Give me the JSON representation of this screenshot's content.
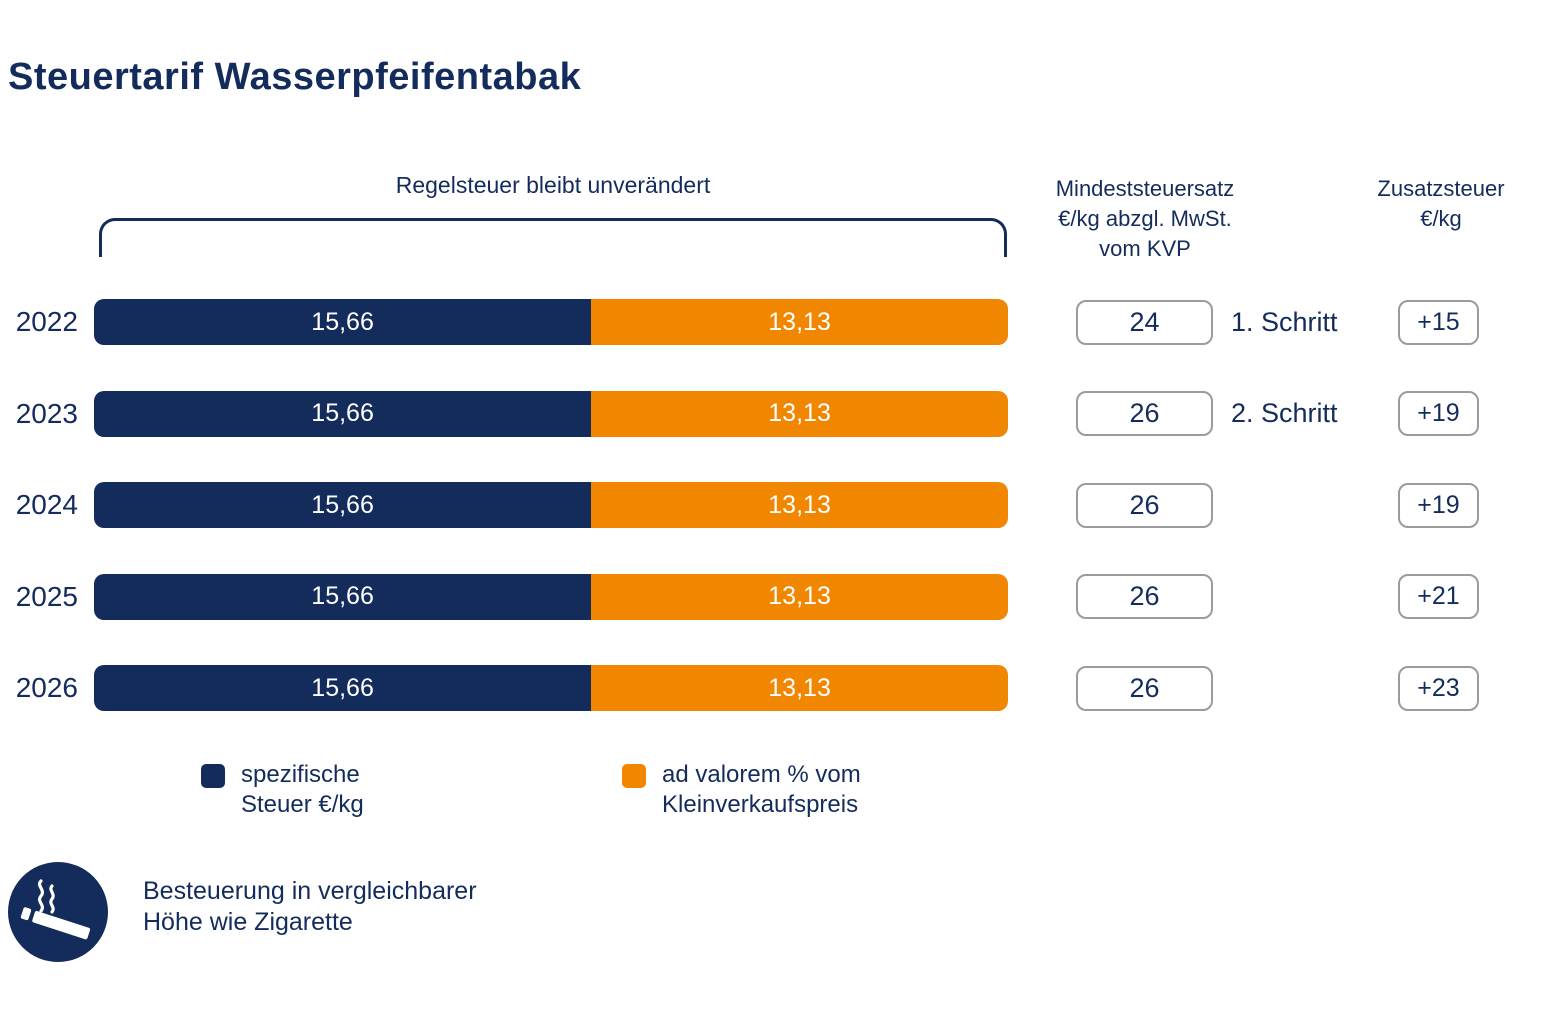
{
  "title": "Steuertarif Wasserpfeifentabak",
  "bracket_label": "Regelsteuer bleibt unverändert",
  "columns": {
    "mindest_header": "Mindeststeuersatz\n€/kg abzgl. MwSt.\nvom KVP",
    "zusatz_header": "Zusatzsteuer\n€/kg"
  },
  "rows": [
    {
      "year": "2022",
      "specific_label": "15,66",
      "advalorem_label": "13,13",
      "mindest": "24",
      "schritt": "1. Schritt",
      "zusatz": "+15"
    },
    {
      "year": "2023",
      "specific_label": "15,66",
      "advalorem_label": "13,13",
      "mindest": "26",
      "schritt": "2. Schritt",
      "zusatz": "+19"
    },
    {
      "year": "2024",
      "specific_label": "15,66",
      "advalorem_label": "13,13",
      "mindest": "26",
      "schritt": "",
      "zusatz": "+19"
    },
    {
      "year": "2025",
      "specific_label": "15,66",
      "advalorem_label": "13,13",
      "mindest": "26",
      "schritt": "",
      "zusatz": "+21"
    },
    {
      "year": "2026",
      "specific_label": "15,66",
      "advalorem_label": "13,13",
      "mindest": "26",
      "schritt": "",
      "zusatz": "+23"
    }
  ],
  "legend": [
    {
      "label": "spezifische\nSteuer €/kg",
      "color": "#142C5C"
    },
    {
      "label": "ad valorem % vom\nKleinverkaufspreis",
      "color": "#F18700"
    }
  ],
  "footer": {
    "text": "Besteuerung in vergleichbarer\nHöhe wie Zigarette"
  },
  "colors": {
    "navy": "#142C5C",
    "orange": "#F18700",
    "box_border": "#9B9B9B"
  },
  "chart_data": {
    "type": "bar",
    "orientation": "horizontal",
    "stacked": true,
    "title": "Steuertarif Wasserpfeifentabak",
    "categories": [
      "2022",
      "2023",
      "2024",
      "2025",
      "2026"
    ],
    "series": [
      {
        "name": "spezifische Steuer €/kg",
        "color": "#142C5C",
        "values": [
          15.66,
          15.66,
          15.66,
          15.66,
          15.66
        ]
      },
      {
        "name": "ad valorem % vom Kleinverkaufspreis",
        "color": "#F18700",
        "values": [
          13.13,
          13.13,
          13.13,
          13.13,
          13.13
        ]
      }
    ],
    "annotations": {
      "bracket_label": "Regelsteuer bleibt unverändert",
      "mindeststeuersatz_eur_kg": [
        24,
        26,
        26,
        26,
        26
      ],
      "schritte": [
        "1. Schritt",
        "2. Schritt",
        "",
        "",
        ""
      ],
      "zusatzsteuer_eur_kg": [
        "+15",
        "+19",
        "+19",
        "+21",
        "+23"
      ],
      "note": "Besteuerung in vergleichbarer Höhe wie Zigarette"
    },
    "legend_position": "bottom",
    "grid": false
  }
}
